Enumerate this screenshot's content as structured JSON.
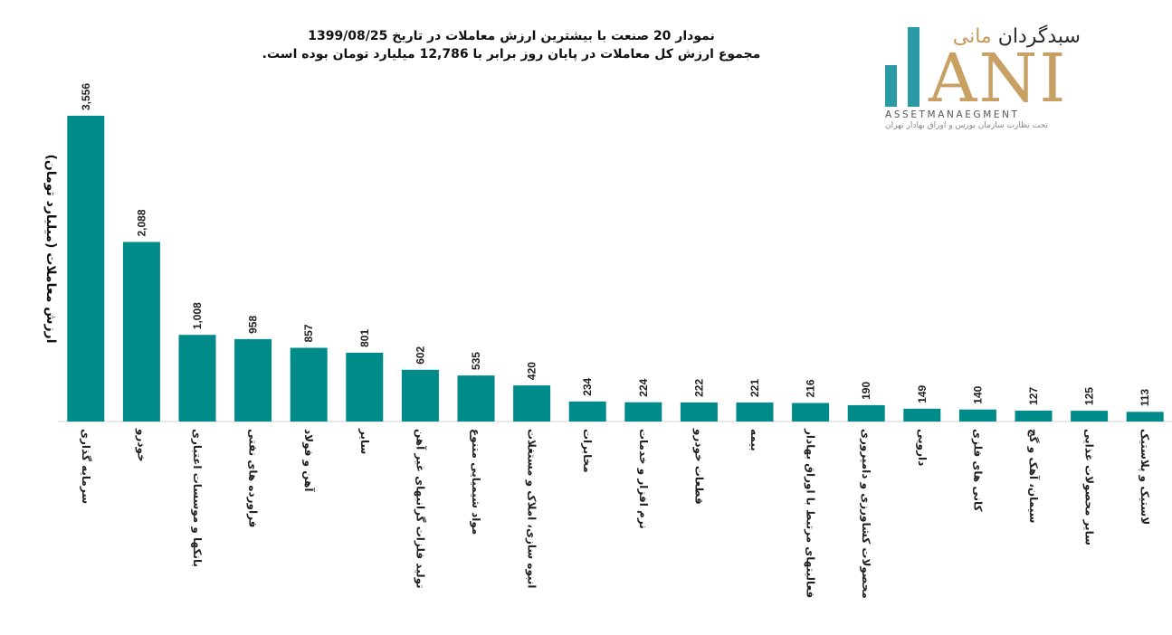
{
  "title": {
    "line1": "نمودار  20 صنعت با بیشترین ارزش معاملات در تاریخ 1399/08/25",
    "line2": "مجموع ارزش  کل معاملات در پایان روز برابر با 12,786 میلیارد تومان بوده است."
  },
  "logo": {
    "persian_main": "سبدگردان",
    "persian_accent": "مانی",
    "ani": "ANI",
    "sub": "ASSETMANAEGMENT",
    "tagline": "تحت نظارت سازمان بورس و اوراق بهادار تهران"
  },
  "chart_data": {
    "type": "bar",
    "ylabel": "ارزش معاملات (میلیارد تومان)",
    "xlabel": "",
    "bar_color": "#008b8b",
    "ylim": [
      0,
      3556
    ],
    "grid": false,
    "categories": [
      "سرمایه گذاری",
      "خودرو",
      "بانکها و موسسات اعتباری",
      "فراورده های نفتی",
      "آهن و فولاد",
      "سایر",
      "تولید فلزات گرانبهای غیر آهن",
      "مواد شیمیایی متنوع",
      "انبوه سازی، املاک و مستغلات",
      "مخابرات",
      "نرم افزار و خدمات",
      "قطعات خودرو",
      "بیمه",
      "فعالیتهای مرتبط با اوراق بهادار",
      "محصولات کشاورزی و دامپروری",
      "دارویی",
      "کانی های فلزی",
      "سیمان، آهک و گچ",
      "سایر محصولات غذایی",
      "لاستیک و پلاستیک"
    ],
    "values": [
      3556,
      2088,
      1008,
      958,
      857,
      801,
      602,
      535,
      420,
      234,
      224,
      222,
      221,
      216,
      190,
      149,
      140,
      127,
      125,
      113
    ],
    "value_labels": [
      "3,556",
      "2,088",
      "1,008",
      "958",
      "857",
      "801",
      "602",
      "535",
      "420",
      "234",
      "224",
      "222",
      "221",
      "216",
      "190",
      "149",
      "140",
      "127",
      "125",
      "113"
    ]
  }
}
